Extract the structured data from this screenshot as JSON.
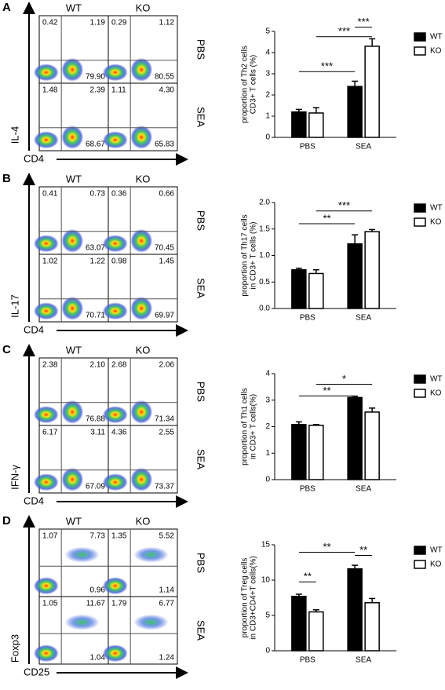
{
  "panels": [
    {
      "letter": "A",
      "columns": [
        "WT",
        "KO"
      ],
      "rows": [
        "PBS",
        "SEA"
      ],
      "y_label": "IL-4",
      "x_label": "CD4",
      "quadrants": [
        [
          [
            "0.42",
            "1.19",
            "79.90"
          ],
          [
            "0.29",
            "1.12",
            "80.55"
          ]
        ],
        [
          [
            "1.48",
            "2.39",
            "68.67"
          ],
          [
            "1.11",
            "4.30",
            "65.83"
          ]
        ]
      ]
    },
    {
      "letter": "B",
      "columns": [
        "WT",
        "KO"
      ],
      "rows": [
        "PBS",
        "SEA"
      ],
      "y_label": "IL-17",
      "x_label": "CD4",
      "quadrants": [
        [
          [
            "0.41",
            "0.73",
            "63.07"
          ],
          [
            "0.36",
            "0.66",
            "70.45"
          ]
        ],
        [
          [
            "1.02",
            "1.22",
            "70.71"
          ],
          [
            "0.98",
            "1.45",
            "69.97"
          ]
        ]
      ]
    },
    {
      "letter": "C",
      "columns": [
        "WT",
        "KO"
      ],
      "rows": [
        "PBS",
        "SEA"
      ],
      "y_label": "IFN-γ",
      "x_label": "CD4",
      "quadrants": [
        [
          [
            "2.38",
            "2.10",
            "76.88"
          ],
          [
            "2.68",
            "2.06",
            "71.34"
          ]
        ],
        [
          [
            "6.17",
            "3.11",
            "67.09"
          ],
          [
            "4.36",
            "2.55",
            "73.37"
          ]
        ]
      ]
    },
    {
      "letter": "D",
      "columns": [
        "WT",
        "KO"
      ],
      "rows": [
        "PBS",
        "SEA"
      ],
      "y_label": "Foxp3",
      "x_label": "CD25",
      "quadrants": [
        [
          [
            "1.07",
            "7.73",
            "0.96"
          ],
          [
            "1.35",
            "5.52",
            "1.14"
          ]
        ],
        [
          [
            "1.05",
            "11.67",
            "1.04"
          ],
          [
            "1.79",
            "6.77",
            "1.24"
          ]
        ]
      ]
    }
  ],
  "chart_data": [
    {
      "type": "bar",
      "ylabel": [
        "proportion of Th2 cells",
        "CD3+ T cells (%)"
      ],
      "categories": [
        "PBS",
        "SEA"
      ],
      "series": [
        {
          "name": "WT",
          "color": "#000000",
          "values": [
            1.2,
            2.4
          ],
          "errors": [
            0.12,
            0.25
          ]
        },
        {
          "name": "KO",
          "color": "#ffffff",
          "values": [
            1.15,
            4.3
          ],
          "errors": [
            0.25,
            0.35
          ]
        }
      ],
      "ylim": [
        0,
        5
      ],
      "yticks": [
        0,
        1,
        2,
        3,
        4,
        5
      ],
      "annotations": [
        "***",
        "***",
        "***"
      ]
    },
    {
      "type": "bar",
      "ylabel": [
        "proportion of Th17 cells",
        "in CD3+ T cells (%)"
      ],
      "categories": [
        "PBS",
        "SEA"
      ],
      "series": [
        {
          "name": "WT",
          "color": "#000000",
          "values": [
            0.73,
            1.22
          ],
          "errors": [
            0.03,
            0.17
          ]
        },
        {
          "name": "KO",
          "color": "#ffffff",
          "values": [
            0.66,
            1.45
          ],
          "errors": [
            0.07,
            0.04
          ]
        }
      ],
      "ylim": [
        0,
        2
      ],
      "yticks": [
        {
          "value": 0,
          "label": "0.0"
        },
        {
          "value": 0.5,
          "label": "0.5"
        },
        {
          "value": 1,
          "label": "1.0"
        },
        {
          "value": 1.5,
          "label": "1.5"
        },
        {
          "value": 2,
          "label": "2.0"
        }
      ],
      "annotations": [
        "**",
        "***"
      ]
    },
    {
      "type": "bar",
      "ylabel": [
        "proportion of Th1 cells",
        "in CD3+ T cells(%)"
      ],
      "categories": [
        "PBS",
        "SEA"
      ],
      "series": [
        {
          "name": "WT",
          "color": "#000000",
          "values": [
            2.08,
            3.1
          ],
          "errors": [
            0.1,
            0.05
          ]
        },
        {
          "name": "KO",
          "color": "#ffffff",
          "values": [
            2.05,
            2.55
          ],
          "errors": [
            0.03,
            0.15
          ]
        }
      ],
      "ylim": [
        0,
        4
      ],
      "yticks": [
        0,
        1,
        2,
        3,
        4
      ],
      "annotations": [
        "**",
        "*"
      ]
    },
    {
      "type": "bar",
      "ylabel": [
        "proportion of Treg cells",
        "in CD3+CD4+T cells(%)"
      ],
      "categories": [
        "PBS",
        "SEA"
      ],
      "series": [
        {
          "name": "WT",
          "color": "#000000",
          "values": [
            7.7,
            11.6
          ],
          "errors": [
            0.3,
            0.5
          ]
        },
        {
          "name": "KO",
          "color": "#ffffff",
          "values": [
            5.5,
            6.8
          ],
          "errors": [
            0.3,
            0.6
          ]
        }
      ],
      "ylim": [
        0,
        15
      ],
      "yticks": [
        0,
        5,
        10,
        15
      ],
      "annotations": [
        "**",
        "**",
        "**"
      ]
    }
  ]
}
